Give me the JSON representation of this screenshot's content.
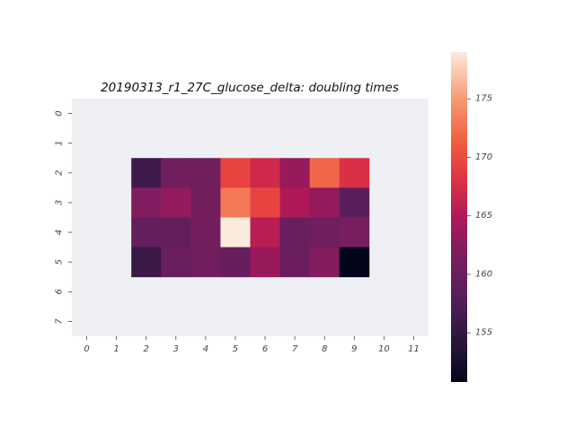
{
  "chart_data": {
    "type": "heatmap",
    "title": "20190313_r1_27C_glucose_delta: doubling times",
    "x_tick_labels": [
      "0",
      "1",
      "2",
      "3",
      "4",
      "5",
      "6",
      "7",
      "8",
      "9",
      "10",
      "11"
    ],
    "y_tick_labels": [
      "0",
      "1",
      "2",
      "3",
      "4",
      "5",
      "6",
      "7"
    ],
    "colorbar": {
      "min": 150.8,
      "max": 179.0,
      "ticks": [
        "155",
        "160",
        "165",
        "170",
        "175"
      ]
    },
    "missing_color": "#eff0f4",
    "values": [
      [
        null,
        null,
        null,
        null,
        null,
        null,
        null,
        null,
        null,
        null,
        null,
        null
      ],
      [
        null,
        null,
        null,
        null,
        null,
        null,
        null,
        null,
        null,
        null,
        null,
        null
      ],
      [
        null,
        null,
        156.2,
        160.8,
        160.8,
        169.5,
        167.0,
        163.5,
        171.8,
        167.8,
        null,
        null
      ],
      [
        null,
        null,
        162.0,
        163.2,
        161.0,
        173.0,
        169.5,
        165.0,
        163.2,
        158.5,
        null,
        null
      ],
      [
        null,
        null,
        159.5,
        159.4,
        161.2,
        179.0,
        165.5,
        160.0,
        160.8,
        161.5,
        null,
        null
      ],
      [
        null,
        null,
        155.6,
        160.0,
        160.8,
        159.8,
        163.5,
        160.2,
        162.2,
        150.8,
        null,
        null
      ],
      [
        null,
        null,
        null,
        null,
        null,
        null,
        null,
        null,
        null,
        null,
        null,
        null
      ],
      [
        null,
        null,
        null,
        null,
        null,
        null,
        null,
        null,
        null,
        null,
        null,
        null
      ]
    ]
  }
}
